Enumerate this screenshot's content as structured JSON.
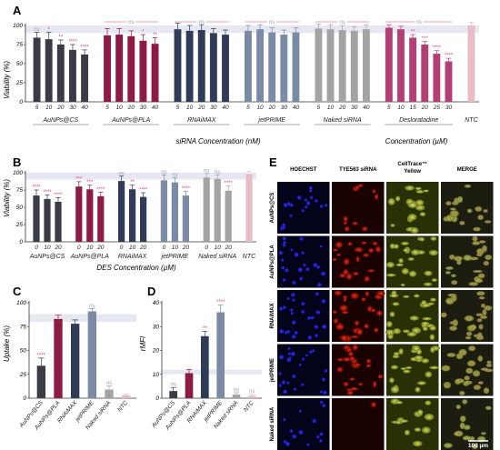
{
  "colors": {
    "chitosan": "#3b3b47",
    "pla": "#8e1b44",
    "rnaimax": "#2f3b57",
    "jetprime": "#7b8ba5",
    "naked": "#a3a3a3",
    "desloratadine": "#b33f74",
    "ntc": "#e8bcc4",
    "sig_star": "#e0457a",
    "sig_ns": "#9aa0b0",
    "band": "#e7e7f1"
  },
  "chart_data": [
    {
      "id": "A",
      "type": "bar",
      "panel_label": "A",
      "ylabel": "Viability (%)",
      "ylim": [
        0,
        100
      ],
      "yticks": [
        "0",
        "25",
        "50",
        "75",
        "100"
      ],
      "xlabel_siRNA": "siRNA Concentration (nM)",
      "xlabel_drug": "Concentration (µM)",
      "groups": [
        {
          "name": "AuNPs@CS",
          "color_key": "chitosan",
          "x": [
            "5",
            "10",
            "20",
            "30",
            "40"
          ],
          "values": [
            84,
            82,
            75,
            68,
            62
          ],
          "errors": [
            7,
            9,
            6,
            7,
            6
          ],
          "labels": [
            "ns",
            "*",
            "**",
            "****",
            "****"
          ],
          "bracket": ""
        },
        {
          "name": "AuNPs@PLA",
          "color_key": "pla",
          "x": [
            "5",
            "10",
            "20",
            "30",
            "40"
          ],
          "values": [
            87,
            88,
            86,
            80,
            76
          ],
          "errors": [
            9,
            8,
            7,
            8,
            8
          ],
          "labels": [
            "",
            "",
            "",
            "*",
            "**"
          ],
          "bracket": "ns"
        },
        {
          "name": "RNAiMAX",
          "color_key": "rnaimax",
          "x": [
            "5",
            "10",
            "20",
            "30",
            "40"
          ],
          "values": [
            95,
            93,
            94,
            90,
            88
          ],
          "errors": [
            8,
            7,
            7,
            6,
            6
          ],
          "labels": [
            "",
            "",
            "",
            "",
            ""
          ],
          "bracket": "ns"
        },
        {
          "name": "jetPRIME",
          "color_key": "jetprime",
          "x": [
            "5",
            "10",
            "20",
            "30",
            "40"
          ],
          "values": [
            93,
            95,
            91,
            88,
            91
          ],
          "errors": [
            7,
            6,
            6,
            6,
            6
          ],
          "labels": [
            "",
            "",
            "",
            "",
            ""
          ],
          "bracket": "ns"
        },
        {
          "name": "Naked siRNA",
          "color_key": "naked",
          "x": [
            "5",
            "10",
            "20",
            "30",
            "40"
          ],
          "values": [
            96,
            95,
            94,
            93,
            95
          ],
          "errors": [
            6,
            6,
            6,
            5,
            6
          ],
          "labels": [
            "",
            "",
            "",
            "",
            ""
          ],
          "bracket": "ns"
        },
        {
          "name": "Desloratadine",
          "color_key": "desloratadine",
          "x": [
            "5",
            "10",
            "15",
            "20",
            "25",
            "30"
          ],
          "values": [
            97,
            95,
            84,
            75,
            63,
            53
          ],
          "errors": [
            4,
            4,
            4,
            4,
            4,
            4
          ],
          "labels": [
            "",
            "",
            "**",
            "***",
            "****",
            "****"
          ],
          "bracket": "ns"
        },
        {
          "name": "NTC",
          "color_key": "ntc",
          "x": [
            ""
          ],
          "values": [
            100
          ],
          "errors": [
            4
          ],
          "labels": [
            ""
          ],
          "bracket": ""
        }
      ]
    },
    {
      "id": "B",
      "type": "bar",
      "panel_label": "B",
      "ylabel": "Viability (%)",
      "ylim": [
        0,
        100
      ],
      "yticks": [
        "0",
        "25",
        "50",
        "75",
        "100"
      ],
      "xlabel": "DES Concentration (µM)",
      "groups": [
        {
          "name": "AuNPs@CS",
          "color_key": "chitosan",
          "x": [
            "0",
            "10",
            "20"
          ],
          "values": [
            67,
            62,
            58
          ],
          "errors": [
            8,
            6,
            6
          ],
          "labels": [
            "****",
            "****",
            "****"
          ]
        },
        {
          "name": "AuNPs@PLA",
          "color_key": "pla",
          "x": [
            "0",
            "10",
            "20"
          ],
          "values": [
            80,
            76,
            66
          ],
          "errors": [
            7,
            6,
            6
          ],
          "labels": [
            "***",
            "***",
            "****"
          ]
        },
        {
          "name": "RNAiMAX",
          "color_key": "rnaimax",
          "x": [
            "0",
            "10",
            "20"
          ],
          "values": [
            88,
            76,
            65
          ],
          "errors": [
            7,
            6,
            6
          ],
          "labels": [
            "ns",
            "**",
            "****"
          ]
        },
        {
          "name": "jetPRIME",
          "color_key": "jetprime",
          "x": [
            "0",
            "10",
            "20"
          ],
          "values": [
            89,
            86,
            67
          ],
          "errors": [
            8,
            7,
            6
          ],
          "labels": [
            "ns",
            "ns",
            "****"
          ]
        },
        {
          "name": "Naked siRNA",
          "color_key": "naked",
          "x": [
            "0",
            "10",
            "20"
          ],
          "values": [
            93,
            91,
            74
          ],
          "errors": [
            6,
            6,
            7
          ],
          "labels": [
            "ns",
            "ns",
            "****"
          ]
        },
        {
          "name": "NTC",
          "color_key": "ntc",
          "x": [
            ""
          ],
          "values": [
            98
          ],
          "errors": [
            4
          ],
          "labels": [
            ""
          ]
        }
      ]
    },
    {
      "id": "C",
      "type": "bar",
      "panel_label": "C",
      "ylabel": "Uptake (%)",
      "ylim": [
        0,
        100
      ],
      "yticks": [
        "0",
        "25",
        "50",
        "75",
        "100"
      ],
      "categories": [
        "AuNPs@CS",
        "AuNPs@PLA",
        "RNAiMAX",
        "jetPRIME",
        "Naked siRNA",
        "NTC"
      ],
      "color_keys": [
        "chitosan",
        "pla",
        "rnaimax",
        "jetprime",
        "naked",
        "ntc"
      ],
      "values": [
        34,
        83,
        78,
        91,
        9,
        3
      ],
      "errors": [
        8,
        4,
        4,
        3,
        4,
        1
      ],
      "labels": [
        "****",
        "",
        "",
        "ns",
        "ns",
        ""
      ]
    },
    {
      "id": "D",
      "type": "bar",
      "panel_label": "D",
      "ylabel": "rMFI",
      "ylim": [
        0,
        40
      ],
      "yticks": [
        "0",
        "10",
        "20",
        "30",
        "40"
      ],
      "categories": [
        "AuNPs@CS",
        "AuNPs@PLA",
        "RNAiMAX",
        "jetPRIME",
        "Naked sRNA",
        "NTC"
      ],
      "color_keys": [
        "chitosan",
        "pla",
        "rnaimax",
        "jetprime",
        "naked",
        "ntc"
      ],
      "values": [
        3,
        10.5,
        26,
        36,
        1.5,
        1
      ],
      "errors": [
        1.5,
        1.5,
        2,
        3,
        0.8,
        0.8
      ],
      "labels": [
        "ns",
        "",
        "**",
        "****",
        "ns",
        "ns"
      ]
    }
  ],
  "micrographs": {
    "panel_label": "E",
    "columns": [
      "HOECHST",
      "TYE563 siRNA",
      "CellTrace™ Yellow",
      "MERGE"
    ],
    "rows": [
      "AuNPs@CS",
      "AuNPs@PLA",
      "RNAiMAX",
      "jetPRIME",
      "Naked siRNA"
    ],
    "scale_bar": "100 µm"
  }
}
